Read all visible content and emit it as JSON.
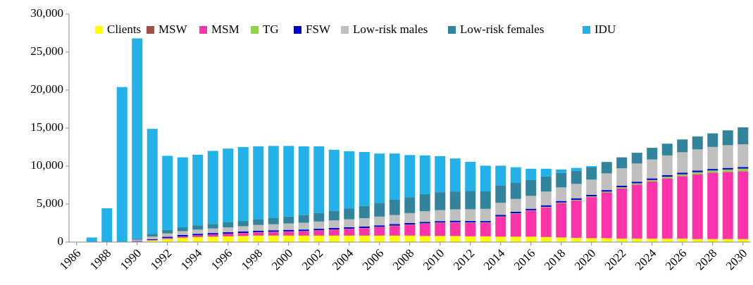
{
  "chart_data": {
    "type": "stacked_bar",
    "categories": [
      "1986",
      null,
      "1988",
      null,
      "1990",
      null,
      "1992",
      null,
      "1994",
      null,
      "1996",
      null,
      "1998",
      null,
      "2000",
      null,
      "2002",
      null,
      "2004",
      null,
      "2006",
      null,
      "2008",
      null,
      "2010",
      null,
      "2012",
      null,
      "2014",
      null,
      "2016",
      null,
      "2018",
      null,
      "2020",
      null,
      "2022",
      null,
      "2024",
      null,
      "2026",
      null,
      "2028",
      null,
      "2030"
    ],
    "series": [
      {
        "name": "Clients",
        "color": "#ffff00",
        "values": [
          0,
          0,
          0,
          0,
          50,
          200,
          400,
          550,
          650,
          700,
          750,
          800,
          850,
          850,
          850,
          850,
          850,
          850,
          850,
          850,
          850,
          850,
          850,
          800,
          800,
          800,
          750,
          750,
          700,
          700,
          700,
          650,
          600,
          550,
          500,
          500,
          450,
          450,
          450,
          450,
          450,
          400,
          400,
          400,
          400
        ]
      },
      {
        "name": "MSW",
        "color": "#a0504a",
        "values": [
          0,
          0,
          0,
          0,
          10,
          20,
          20,
          20,
          20,
          20,
          20,
          20,
          20,
          20,
          20,
          20,
          20,
          20,
          20,
          20,
          20,
          20,
          20,
          20,
          20,
          20,
          20,
          20,
          20,
          20,
          20,
          20,
          20,
          20,
          20,
          20,
          20,
          20,
          20,
          20,
          20,
          20,
          20,
          20,
          20
        ]
      },
      {
        "name": "MSM",
        "color": "#ff33aa",
        "values": [
          0,
          0,
          0,
          0,
          20,
          50,
          100,
          150,
          200,
          250,
          300,
          350,
          400,
          450,
          500,
          550,
          650,
          750,
          850,
          950,
          1100,
          1250,
          1400,
          1600,
          1700,
          1750,
          1750,
          1750,
          2600,
          3000,
          3400,
          3900,
          4500,
          4900,
          5400,
          6000,
          6600,
          7100,
          7500,
          7900,
          8200,
          8500,
          8700,
          8800,
          8900
        ]
      },
      {
        "name": "TG",
        "color": "#92d050",
        "values": [
          0,
          0,
          0,
          0,
          0,
          10,
          20,
          20,
          20,
          20,
          20,
          20,
          30,
          30,
          30,
          30,
          30,
          30,
          30,
          30,
          30,
          40,
          40,
          40,
          40,
          40,
          50,
          50,
          50,
          60,
          60,
          70,
          80,
          90,
          100,
          120,
          150,
          170,
          200,
          230,
          250,
          280,
          300,
          330,
          350
        ]
      },
      {
        "name": "FSW",
        "color": "#0000cc",
        "values": [
          0,
          0,
          0,
          0,
          50,
          100,
          150,
          200,
          200,
          200,
          200,
          200,
          200,
          200,
          200,
          200,
          200,
          200,
          200,
          200,
          200,
          200,
          200,
          200,
          200,
          200,
          200,
          200,
          200,
          200,
          200,
          200,
          200,
          200,
          200,
          200,
          200,
          200,
          200,
          200,
          200,
          200,
          200,
          200,
          200
        ]
      },
      {
        "name": "Low-risk males",
        "color": "#bfbfbf",
        "values": [
          0,
          0,
          0,
          0,
          200,
          350,
          450,
          500,
          550,
          600,
          650,
          700,
          750,
          800,
          850,
          900,
          950,
          1000,
          1050,
          1100,
          1150,
          1200,
          1300,
          1400,
          1450,
          1500,
          1550,
          1600,
          1600,
          1700,
          1700,
          1800,
          1800,
          1900,
          2000,
          2200,
          2300,
          2400,
          2500,
          2600,
          2700,
          2800,
          2900,
          3000,
          3000
        ]
      },
      {
        "name": "Low-risk females",
        "color": "#31849b",
        "values": [
          0,
          0,
          0,
          0,
          150,
          350,
          450,
          500,
          550,
          600,
          650,
          700,
          750,
          800,
          900,
          1000,
          1100,
          1250,
          1400,
          1600,
          1800,
          2000,
          2100,
          2250,
          2350,
          2350,
          2400,
          2300,
          2300,
          2100,
          2100,
          2000,
          1900,
          1700,
          1600,
          1500,
          1430,
          1410,
          1530,
          1550,
          1680,
          1700,
          1780,
          1950,
          2230
        ]
      },
      {
        "name": "IDU",
        "color": "#22b1e8",
        "values": [
          0,
          600,
          4450,
          20400,
          26320,
          13820,
          9760,
          9210,
          9310,
          9610,
          9710,
          9710,
          9600,
          9500,
          9300,
          9050,
          8800,
          8050,
          7550,
          7100,
          6500,
          6090,
          5540,
          5090,
          4740,
          4340,
          3830,
          3380,
          2580,
          2070,
          1470,
          1010,
          450,
          390,
          180,
          10,
          0,
          0,
          0,
          0,
          0,
          0,
          0,
          0,
          0
        ]
      }
    ],
    "ylim": [
      0,
      30000
    ],
    "yticks": [
      0,
      {
        "value": 5000,
        "label": "5,000"
      },
      {
        "value": 10000,
        "label": "10,000"
      },
      {
        "value": 15000,
        "label": "15,000"
      },
      {
        "value": 20000,
        "label": "20,000"
      },
      {
        "value": 25000,
        "label": "25,000"
      },
      {
        "value": 30000,
        "label": "30,000"
      }
    ],
    "grid": false,
    "legend": "top"
  }
}
